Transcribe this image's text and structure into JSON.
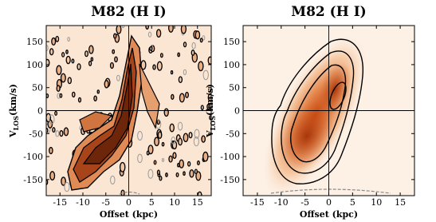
{
  "chart_data": [
    {
      "type": "pv-diagram",
      "title": "M82 (H I)",
      "xlabel": "Offset (kpc)",
      "ylabel": {
        "main": "V",
        "sub": "LOS",
        "rest": "(km/s)"
      },
      "xlim": [
        -18,
        18
      ],
      "ylim": [
        -185,
        185
      ],
      "xticks": [
        -15,
        -10,
        -5,
        0,
        5,
        10,
        15
      ],
      "yticks": [
        -150,
        -100,
        -50,
        0,
        50,
        100,
        150
      ]
    },
    {
      "type": "pv-diagram",
      "title": "M82 (H I)",
      "xlabel": "Offset (kpc)",
      "ylabel": {
        "main": "V",
        "sub": "LOS",
        "rest": "(km/s)"
      },
      "xlim": [
        -18,
        18
      ],
      "ylim": [
        -185,
        185
      ],
      "xticks": [
        -15,
        -10,
        -5,
        0,
        5,
        10,
        15
      ],
      "yticks": [
        -150,
        -100,
        -50,
        0,
        50,
        100,
        150
      ]
    }
  ]
}
